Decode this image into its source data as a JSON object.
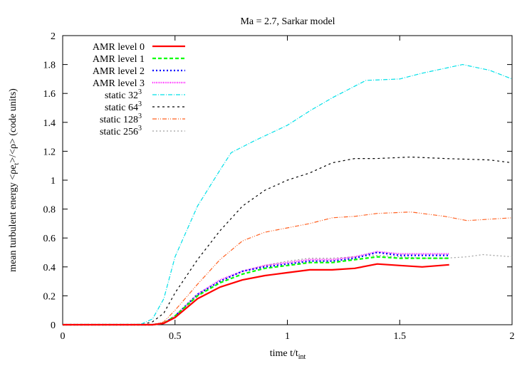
{
  "chart_data": {
    "type": "line",
    "title": "Ma = 2.7, Sarkar model",
    "xlabel": "time t/t",
    "xlabel_sub": "int",
    "ylabel_pre": "mean turbulent energy <ρe",
    "ylabel_sub": "t",
    "ylabel_post": ">/<ρ> (code units)",
    "xlim": [
      0,
      2
    ],
    "ylim": [
      0,
      2
    ],
    "xticks": [
      "0",
      "0.5",
      "1",
      "1.5",
      "2"
    ],
    "xtick_values": [
      0,
      0.5,
      1,
      1.5,
      2
    ],
    "yticks": [
      "0",
      "0.2",
      "0.4",
      "0.6",
      "0.8",
      "1",
      "1.2",
      "1.4",
      "1.6",
      "1.8",
      "2"
    ],
    "ytick_values": [
      0,
      0.2,
      0.4,
      0.6,
      0.8,
      1,
      1.2,
      1.4,
      1.6,
      1.8,
      2
    ],
    "grid": false,
    "legend_placement": "top-left",
    "series": [
      {
        "name": "AMR level 0",
        "sup": "",
        "color": "#ff0000",
        "dash": "",
        "width": 2.2,
        "x": [
          0,
          0.4,
          0.45,
          0.5,
          0.6,
          0.7,
          0.8,
          0.9,
          1.0,
          1.1,
          1.2,
          1.3,
          1.4,
          1.5,
          1.6,
          1.72
        ],
        "y": [
          0,
          0,
          0.01,
          0.05,
          0.18,
          0.26,
          0.31,
          0.34,
          0.36,
          0.38,
          0.38,
          0.39,
          0.42,
          0.41,
          0.4,
          0.415
        ]
      },
      {
        "name": "AMR level 1",
        "sup": "",
        "color": "#00ff00",
        "dash": "5,3",
        "width": 2.2,
        "x": [
          0,
          0.4,
          0.45,
          0.5,
          0.6,
          0.7,
          0.8,
          0.9,
          1.0,
          1.1,
          1.2,
          1.3,
          1.4,
          1.5,
          1.6,
          1.72
        ],
        "y": [
          0,
          0,
          0.01,
          0.06,
          0.2,
          0.29,
          0.35,
          0.39,
          0.41,
          0.43,
          0.43,
          0.45,
          0.47,
          0.46,
          0.46,
          0.46
        ]
      },
      {
        "name": "AMR level 2",
        "sup": "",
        "color": "#0000ff",
        "dash": "2,3",
        "width": 2.2,
        "x": [
          0,
          0.4,
          0.45,
          0.5,
          0.6,
          0.7,
          0.8,
          0.9,
          1.0,
          1.1,
          1.2,
          1.3,
          1.4,
          1.5,
          1.6,
          1.72
        ],
        "y": [
          0,
          0,
          0.01,
          0.06,
          0.21,
          0.3,
          0.37,
          0.4,
          0.42,
          0.44,
          0.44,
          0.46,
          0.5,
          0.48,
          0.48,
          0.48
        ]
      },
      {
        "name": "AMR level 3",
        "sup": "",
        "color": "#ff00ff",
        "dash": "1,1.5",
        "width": 2.2,
        "x": [
          0,
          0.4,
          0.45,
          0.5,
          0.6,
          0.7,
          0.8,
          0.9,
          1.0,
          1.1,
          1.2,
          1.3,
          1.4,
          1.5,
          1.6,
          1.72
        ],
        "y": [
          0,
          0,
          0.01,
          0.06,
          0.21,
          0.31,
          0.37,
          0.41,
          0.43,
          0.45,
          0.45,
          0.47,
          0.505,
          0.49,
          0.49,
          0.49
        ]
      },
      {
        "name": "static 32",
        "sup": "3",
        "color": "#00e0e8",
        "dash": "6,2,1,2",
        "width": 1.2,
        "x": [
          0,
          0.3,
          0.35,
          0.4,
          0.45,
          0.5,
          0.6,
          0.7,
          0.75,
          0.85,
          1.0,
          1.1,
          1.2,
          1.35,
          1.5,
          1.6,
          1.78,
          1.9,
          2.0
        ],
        "y": [
          0,
          0,
          0.005,
          0.04,
          0.18,
          0.47,
          0.82,
          1.07,
          1.19,
          1.27,
          1.38,
          1.48,
          1.57,
          1.69,
          1.7,
          1.74,
          1.8,
          1.76,
          1.7
        ]
      },
      {
        "name": "static 64",
        "sup": "3",
        "color": "#000000",
        "dash": "3,4",
        "width": 1.2,
        "x": [
          0,
          0.35,
          0.4,
          0.45,
          0.5,
          0.6,
          0.7,
          0.8,
          0.9,
          1.0,
          1.1,
          1.2,
          1.3,
          1.4,
          1.55,
          1.7,
          1.9,
          2.0
        ],
        "y": [
          0,
          0,
          0.02,
          0.08,
          0.22,
          0.45,
          0.65,
          0.82,
          0.93,
          1.0,
          1.05,
          1.12,
          1.15,
          1.15,
          1.16,
          1.15,
          1.14,
          1.12
        ]
      },
      {
        "name": "static 128",
        "sup": "3",
        "color": "#ff6020",
        "dash": "6,2,1,2,1,2",
        "width": 1.2,
        "x": [
          0,
          0.4,
          0.45,
          0.5,
          0.6,
          0.7,
          0.8,
          0.9,
          1.0,
          1.1,
          1.2,
          1.3,
          1.4,
          1.55,
          1.7,
          1.8,
          1.9,
          2.0
        ],
        "y": [
          0,
          0,
          0.02,
          0.1,
          0.28,
          0.45,
          0.58,
          0.64,
          0.67,
          0.7,
          0.74,
          0.75,
          0.77,
          0.78,
          0.75,
          0.72,
          0.73,
          0.74
        ]
      },
      {
        "name": "static 256",
        "sup": "3",
        "color": "#a0a0a0",
        "dash": "2,3",
        "width": 1.2,
        "x": [
          0,
          0.4,
          0.45,
          0.5,
          0.6,
          0.7,
          0.8,
          0.9,
          1.0,
          1.1,
          1.2,
          1.3,
          1.4,
          1.5,
          1.6,
          1.7,
          1.8,
          1.87,
          2.0
        ],
        "y": [
          0,
          0,
          0.01,
          0.06,
          0.2,
          0.3,
          0.37,
          0.41,
          0.44,
          0.46,
          0.46,
          0.47,
          0.48,
          0.47,
          0.46,
          0.46,
          0.47,
          0.485,
          0.47
        ]
      }
    ]
  }
}
